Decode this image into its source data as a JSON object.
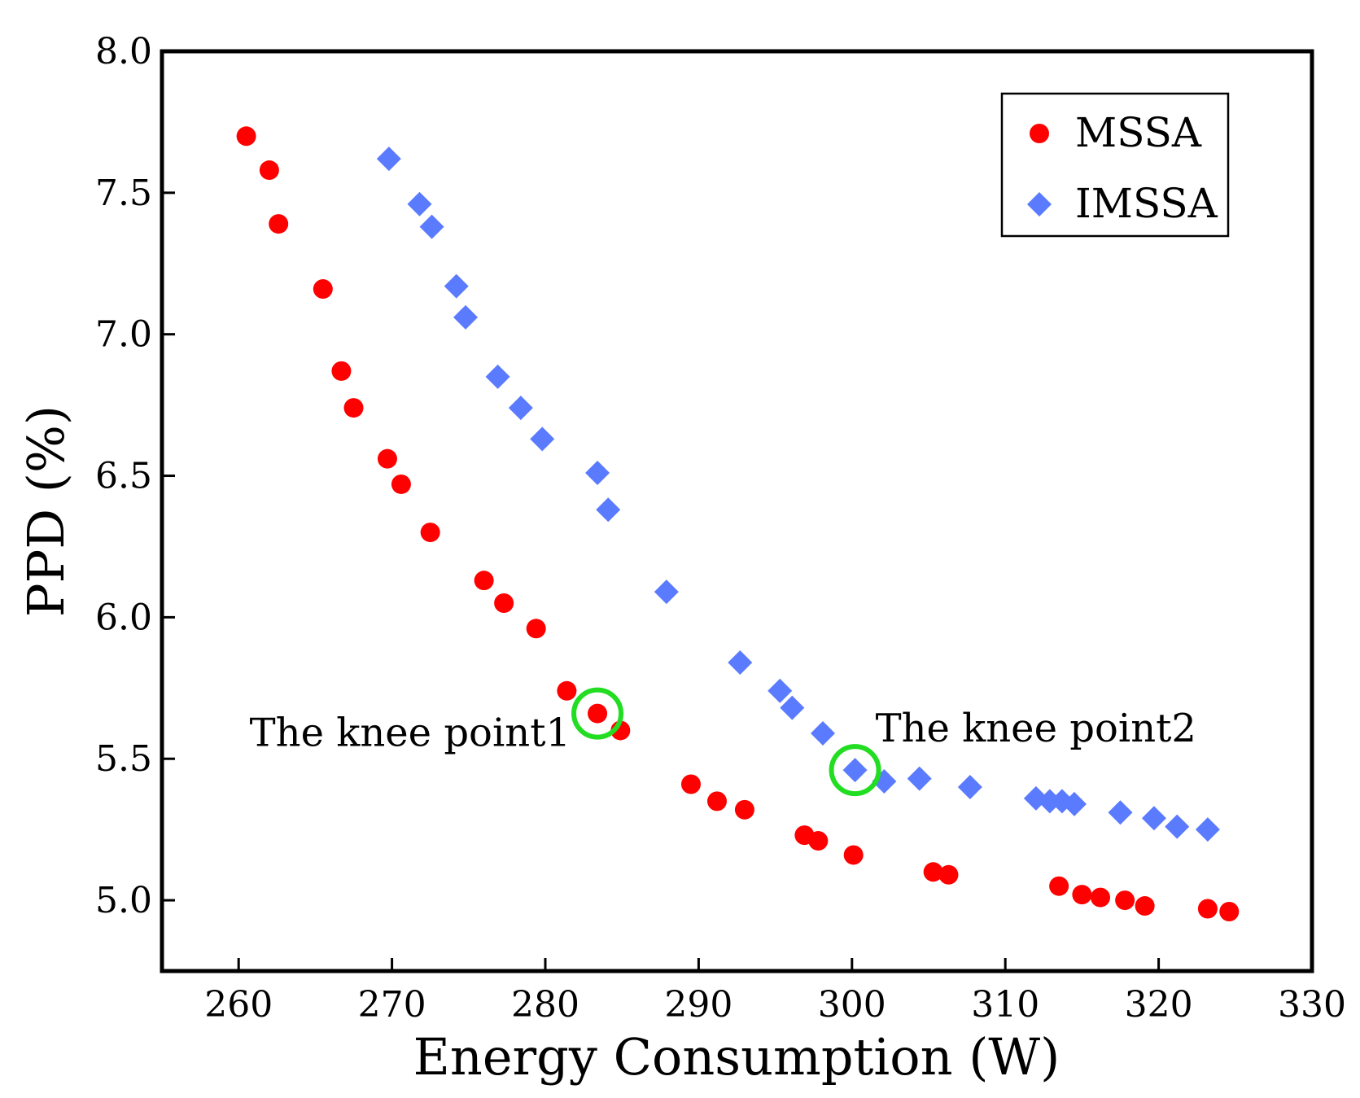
{
  "chart_data": {
    "type": "scatter",
    "title": "",
    "xlabel": "Energy Consumption (W)",
    "ylabel": "PPD (%)",
    "xlim": [
      255,
      330
    ],
    "ylim": [
      4.75,
      8.0
    ],
    "xticks": [
      260,
      270,
      280,
      290,
      300,
      310,
      320,
      330
    ],
    "yticks": [
      5.0,
      5.5,
      6.0,
      6.5,
      7.0,
      7.5,
      8.0
    ],
    "xtick_labels": [
      "260",
      "270",
      "280",
      "290",
      "300",
      "310",
      "320",
      "330"
    ],
    "ytick_labels": [
      "5.0",
      "5.5",
      "6.0",
      "6.5",
      "7.0",
      "7.5",
      "8.0"
    ],
    "grid": false,
    "legend_position": "top-right",
    "series": [
      {
        "name": "MSSA",
        "marker": "circle",
        "color": "#ff0000",
        "x": [
          260.5,
          262.0,
          262.6,
          265.5,
          266.7,
          267.5,
          269.7,
          270.6,
          272.5,
          276.0,
          277.3,
          279.4,
          281.4,
          283.4,
          284.9,
          289.5,
          291.2,
          293.0,
          296.9,
          297.8,
          300.1,
          305.3,
          306.3,
          313.5,
          315.0,
          316.2,
          317.8,
          319.1,
          323.2,
          324.6
        ],
        "y": [
          7.7,
          7.58,
          7.39,
          7.16,
          6.87,
          6.74,
          6.56,
          6.47,
          6.3,
          6.13,
          6.05,
          5.96,
          5.74,
          5.66,
          5.6,
          5.41,
          5.35,
          5.32,
          5.23,
          5.21,
          5.16,
          5.1,
          5.09,
          5.05,
          5.02,
          5.01,
          5.0,
          4.98,
          4.97,
          4.96
        ]
      },
      {
        "name": "IMSSA",
        "marker": "diamond",
        "color": "#5b7bff",
        "x": [
          269.8,
          271.8,
          272.6,
          274.2,
          274.8,
          276.9,
          278.4,
          279.8,
          283.4,
          284.1,
          287.9,
          292.7,
          295.3,
          296.1,
          298.1,
          300.2,
          302.1,
          304.4,
          307.7,
          312.0,
          312.9,
          313.7,
          314.5,
          317.5,
          319.7,
          321.2,
          323.2
        ],
        "y": [
          7.62,
          7.46,
          7.38,
          7.17,
          7.06,
          6.85,
          6.74,
          6.63,
          6.51,
          6.38,
          6.09,
          5.84,
          5.74,
          5.68,
          5.59,
          5.46,
          5.42,
          5.43,
          5.4,
          5.36,
          5.35,
          5.35,
          5.34,
          5.31,
          5.29,
          5.26,
          5.25
        ]
      }
    ],
    "annotations": [
      {
        "text": "The knee point1",
        "x": 283.4,
        "y": 5.66,
        "series": "MSSA",
        "label_side": "left",
        "circle_color": "#22dd22"
      },
      {
        "text": "The knee point2",
        "x": 300.2,
        "y": 5.46,
        "series": "IMSSA",
        "label_side": "right",
        "circle_color": "#22dd22"
      }
    ]
  }
}
